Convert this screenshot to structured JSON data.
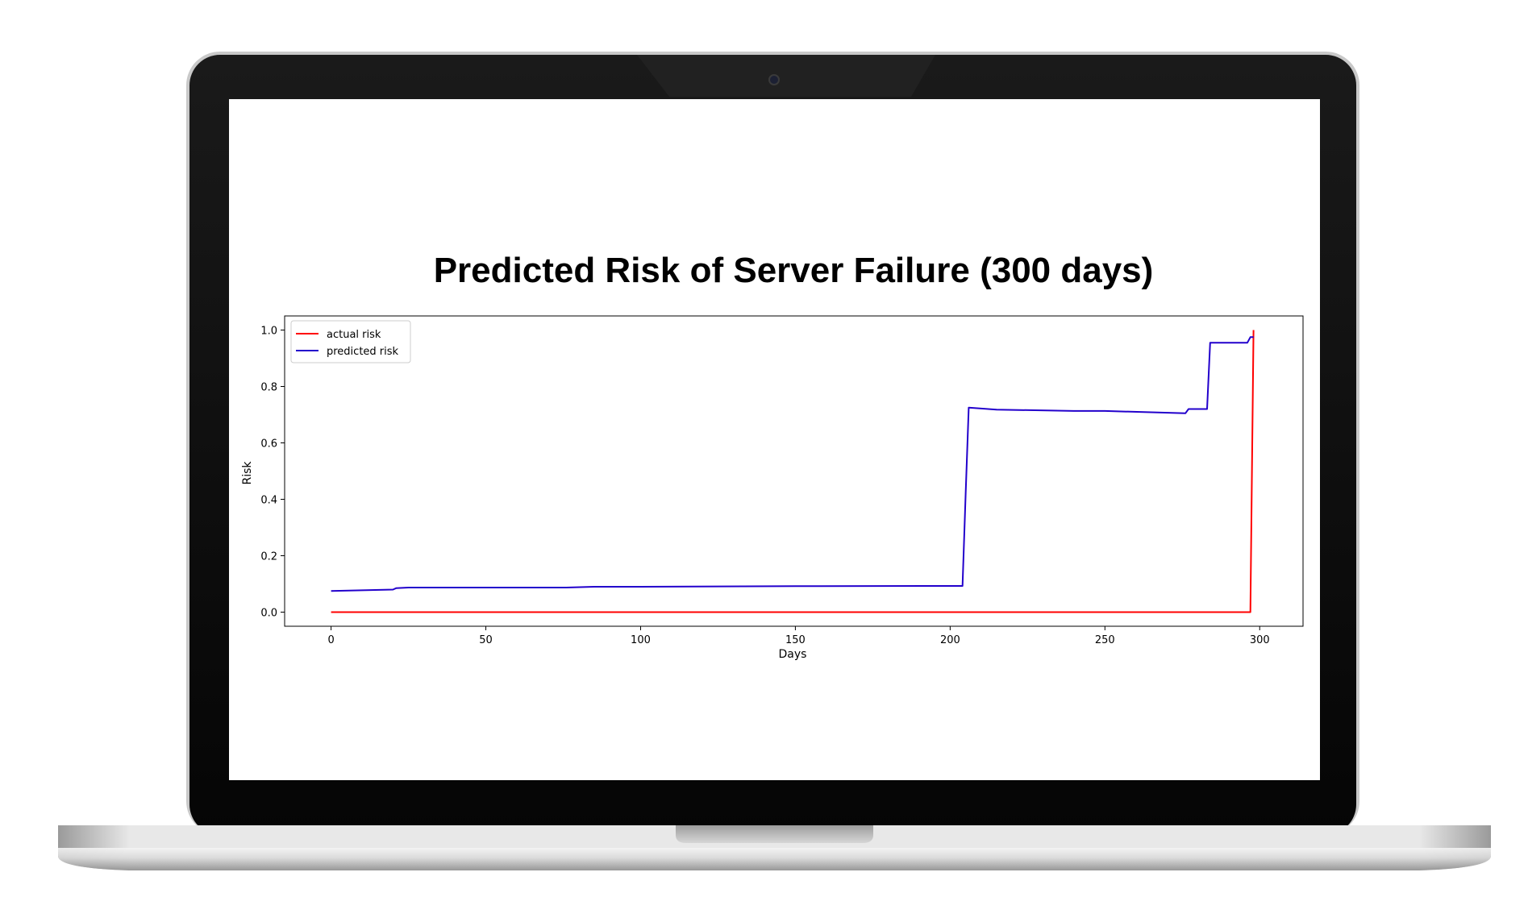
{
  "title": "Predicted Risk of Server Failure (300 days)",
  "colors": {
    "actual": "#ff0000",
    "predicted": "#2200cc",
    "bezel": "#0b0b0b",
    "screen": "#ffffff"
  },
  "chart_data": {
    "type": "line",
    "title": "Predicted Risk of Server Failure (300 days)",
    "xlabel": "Days",
    "ylabel": "Risk",
    "xlim": [
      -15,
      314
    ],
    "ylim": [
      -0.05,
      1.05
    ],
    "xticks": [
      0,
      50,
      100,
      150,
      200,
      250,
      300
    ],
    "yticks": [
      0.0,
      0.2,
      0.4,
      0.6,
      0.8,
      1.0
    ],
    "xtick_labels": [
      "0",
      "50",
      "100",
      "150",
      "200",
      "250",
      "300"
    ],
    "ytick_labels": [
      "0.0",
      "0.2",
      "0.4",
      "0.6",
      "0.8",
      "1.0"
    ],
    "grid": false,
    "legend": "top-left",
    "series": [
      {
        "name": "actual risk",
        "color": "#ff0000",
        "x": [
          0,
          297,
          298
        ],
        "y": [
          0.0,
          0.0,
          1.0
        ]
      },
      {
        "name": "predicted risk",
        "color": "#2200cc",
        "x": [
          0,
          20,
          21,
          25,
          50,
          76,
          85,
          100,
          150,
          200,
          204,
          205,
          206,
          215,
          240,
          250,
          276,
          277,
          283,
          284,
          290,
          296,
          297,
          298
        ],
        "y": [
          0.075,
          0.08,
          0.085,
          0.087,
          0.087,
          0.087,
          0.09,
          0.09,
          0.092,
          0.093,
          0.093,
          0.42,
          0.725,
          0.718,
          0.713,
          0.713,
          0.705,
          0.72,
          0.72,
          0.955,
          0.955,
          0.955,
          0.975,
          0.975
        ]
      }
    ]
  }
}
